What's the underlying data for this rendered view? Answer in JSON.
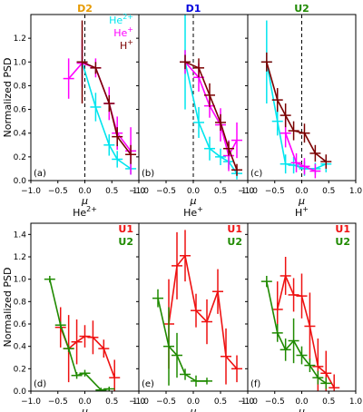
{
  "colors": {
    "he2": "#00e5ee",
    "he1": "#ff00ff",
    "h1": "#7a0000",
    "u1": "#ee1111",
    "u2": "#1f8a00",
    "d2_title": "#e69a00",
    "d1_title": "#0000dd",
    "u2_title": "#1f8a00"
  },
  "chart_data": [
    {
      "type": "line",
      "panel": "(a)",
      "title": "D2",
      "title_color": "#e69a00",
      "xlim": [
        -1.0,
        1.0
      ],
      "ylim": [
        0,
        1.4
      ],
      "dashed_x": 0,
      "ylabel": "Normalized PSD",
      "xlabel": "μ",
      "xticks": [
        "−1.0",
        "−0.5",
        "0.0",
        "0.5",
        "1.0"
      ],
      "yticks": [
        "0.0",
        "0.2",
        "0.4",
        "0.6",
        "0.8",
        "1.0",
        "1.2"
      ],
      "show_xtick_labels": false,
      "show_ytick_labels": true,
      "legend": [
        {
          "text": "He",
          "sup": "2+",
          "color": "#00e5ee"
        },
        {
          "text": "He",
          "sup": "+",
          "color": "#ff00ff"
        },
        {
          "text": "H",
          "sup": "+",
          "color": "#7a0000"
        }
      ],
      "series": [
        {
          "name": "He2+",
          "color": "#00e5ee",
          "x": [
            -0.05,
            0.2,
            0.45,
            0.6,
            0.85
          ],
          "y": [
            1.0,
            0.62,
            0.3,
            0.18,
            0.1
          ],
          "err": [
            0.1,
            0.12,
            0.09,
            0.07,
            0.05
          ]
        },
        {
          "name": "He+",
          "color": "#ff00ff",
          "x": [
            -0.3,
            -0.05,
            0.2,
            0.45,
            0.6,
            0.85
          ],
          "y": [
            0.86,
            0.99,
            0.95,
            0.65,
            0.4,
            0.25
          ],
          "err": [
            0.17,
            0.2,
            0.08,
            0.14,
            0.14,
            0.2
          ]
        },
        {
          "name": "H+",
          "color": "#7a0000",
          "x": [
            -0.05,
            0.2,
            0.45,
            0.6,
            0.85
          ],
          "y": [
            1.0,
            0.95,
            0.65,
            0.37,
            0.22
          ],
          "err": [
            0.35,
            0.05,
            0.07,
            0.08,
            0.08
          ]
        }
      ]
    },
    {
      "type": "line",
      "panel": "(b)",
      "title": "D1",
      "title_color": "#0000dd",
      "xlim": [
        -1.0,
        1.0
      ],
      "ylim": [
        0,
        1.4
      ],
      "dashed_x": 0,
      "xlabel": "μ",
      "xticks": [
        "−1.0",
        "−0.5",
        "0.0",
        "0.5",
        "1.0"
      ],
      "show_xtick_labels": false,
      "show_ytick_labels": false,
      "series": [
        {
          "name": "He2+",
          "color": "#00e5ee",
          "x": [
            -0.15,
            0.1,
            0.3,
            0.5,
            0.65,
            0.8
          ],
          "y": [
            1.0,
            0.49,
            0.27,
            0.2,
            0.16,
            0.06
          ],
          "err": [
            0.4,
            0.13,
            0.1,
            0.07,
            0.06,
            0.05
          ]
        },
        {
          "name": "He+",
          "color": "#ff00ff",
          "x": [
            -0.15,
            0.1,
            0.3,
            0.5,
            0.65,
            0.8
          ],
          "y": [
            1.0,
            0.87,
            0.63,
            0.47,
            0.21,
            0.34
          ],
          "err": [
            0.1,
            0.12,
            0.1,
            0.14,
            0.13,
            0.15
          ]
        },
        {
          "name": "H+",
          "color": "#7a0000",
          "x": [
            -0.15,
            0.1,
            0.3,
            0.5,
            0.65,
            0.8
          ],
          "y": [
            1.0,
            0.95,
            0.72,
            0.49,
            0.27,
            0.09
          ],
          "err": [
            0.06,
            0.08,
            0.1,
            0.07,
            0.06,
            0.05
          ]
        }
      ]
    },
    {
      "type": "line",
      "panel": "(c)",
      "title": "U2",
      "title_color": "#1f8a00",
      "xlim": [
        -1.0,
        1.0
      ],
      "ylim": [
        0,
        1.4
      ],
      "dashed_x": 0,
      "xlabel": "μ",
      "xticks": [
        "−1.0",
        "−0.5",
        "0.0",
        "0.5",
        "1.0"
      ],
      "show_xtick_labels": false,
      "show_ytick_labels": false,
      "series": [
        {
          "name": "He2+",
          "color": "#00e5ee",
          "x": [
            -0.65,
            -0.45,
            -0.3,
            -0.15,
            0.05,
            0.25,
            0.45
          ],
          "y": [
            1.0,
            0.5,
            0.14,
            0.13,
            0.1,
            0.1,
            0.14
          ],
          "err": [
            0.35,
            0.12,
            0.08,
            0.07,
            0.06,
            0.05,
            0.07
          ]
        },
        {
          "name": "He+",
          "color": "#ff00ff",
          "x": [
            -0.3,
            -0.1,
            0.05,
            0.25
          ],
          "y": [
            0.4,
            0.15,
            0.12,
            0.08
          ],
          "err": [
            0.12,
            0.08,
            0.07,
            0.06
          ]
        },
        {
          "name": "H+",
          "color": "#7a0000",
          "x": [
            -0.65,
            -0.45,
            -0.3,
            -0.15,
            0.05,
            0.25,
            0.45
          ],
          "y": [
            1.0,
            0.68,
            0.55,
            0.42,
            0.4,
            0.23,
            0.16
          ],
          "err": [
            0.08,
            0.1,
            0.1,
            0.08,
            0.08,
            0.07,
            0.06
          ]
        }
      ]
    },
    {
      "type": "line",
      "panel": "(d)",
      "title": "He2+",
      "title_base": "He",
      "title_sup": "2+",
      "xlim": [
        -1.0,
        1.0
      ],
      "ylim": [
        0,
        1.5
      ],
      "ylabel": "Normalized PSD",
      "xlabel": "μ",
      "xticks": [
        "−1.0",
        "−0.5",
        "0.0",
        "0.5",
        "1.0"
      ],
      "yticks": [
        "0.0",
        "0.2",
        "0.4",
        "0.6",
        "0.8",
        "1.0",
        "1.2",
        "1.4"
      ],
      "show_xtick_labels": true,
      "show_ytick_labels": true,
      "legend": [
        {
          "text": "U1",
          "color": "#ee1111"
        },
        {
          "text": "U2",
          "color": "#1f8a00"
        }
      ],
      "series": [
        {
          "name": "U1",
          "color": "#ee1111",
          "x": [
            -0.45,
            -0.3,
            -0.15,
            0.0,
            0.15,
            0.35,
            0.55
          ],
          "y": [
            0.57,
            0.38,
            0.44,
            0.49,
            0.48,
            0.38,
            0.12
          ],
          "err": [
            0.18,
            0.3,
            0.2,
            0.1,
            0.15,
            0.08,
            0.16
          ]
        },
        {
          "name": "U2",
          "color": "#1f8a00",
          "x": [
            -0.65,
            -0.45,
            -0.3,
            -0.15,
            0.0,
            0.3,
            0.45
          ],
          "y": [
            1.0,
            0.59,
            0.38,
            0.14,
            0.16,
            0.01,
            0.02
          ],
          "err": [
            0.03,
            0.03,
            0.03,
            0.03,
            0.03,
            0.02,
            0.02
          ]
        }
      ]
    },
    {
      "type": "line",
      "panel": "(e)",
      "title": "He+",
      "title_base": "He",
      "title_sup": "+",
      "xlim": [
        -1.0,
        1.0
      ],
      "ylim": [
        0,
        1.5
      ],
      "xlabel": "μ",
      "xticks": [
        "−1.0",
        "−0.5",
        "0.0",
        "0.5",
        "1.0"
      ],
      "show_xtick_labels": true,
      "show_ytick_labels": false,
      "legend": [
        {
          "text": "U1",
          "color": "#ee1111"
        },
        {
          "text": "U2",
          "color": "#1f8a00"
        }
      ],
      "series": [
        {
          "name": "U1",
          "color": "#ee1111",
          "x": [
            -0.45,
            -0.3,
            -0.15,
            0.05,
            0.25,
            0.45,
            0.6,
            0.8
          ],
          "y": [
            0.6,
            1.12,
            1.21,
            0.72,
            0.62,
            0.89,
            0.31,
            0.2
          ],
          "err": [
            0.4,
            0.3,
            0.23,
            0.15,
            0.2,
            0.2,
            0.25,
            0.12
          ]
        },
        {
          "name": "U2",
          "color": "#1f8a00",
          "x": [
            -0.65,
            -0.45,
            -0.3,
            -0.15,
            0.05,
            0.25
          ],
          "y": [
            0.83,
            0.4,
            0.32,
            0.15,
            0.09,
            0.09
          ],
          "err": [
            0.08,
            0.35,
            0.2,
            0.05,
            0.05,
            0.03
          ]
        }
      ]
    },
    {
      "type": "line",
      "panel": "(f)",
      "title": "H+",
      "title_base": "H",
      "title_sup": "+",
      "xlim": [
        -1.0,
        1.0
      ],
      "ylim": [
        0,
        1.5
      ],
      "xlabel": "μ",
      "xticks": [
        "−1.0",
        "−0.5",
        "0.0",
        "0.5",
        "1.0"
      ],
      "show_xtick_labels": true,
      "show_ytick_labels": false,
      "legend": [
        {
          "text": "U1",
          "color": "#ee1111"
        },
        {
          "text": "U2",
          "color": "#1f8a00"
        }
      ],
      "series": [
        {
          "name": "U1",
          "color": "#ee1111",
          "x": [
            -0.45,
            -0.3,
            -0.15,
            0.0,
            0.15,
            0.3,
            0.45,
            0.6
          ],
          "y": [
            0.73,
            1.03,
            0.86,
            0.85,
            0.58,
            0.22,
            0.16,
            0.03
          ],
          "err": [
            0.25,
            0.17,
            0.15,
            0.2,
            0.3,
            0.25,
            0.2,
            0.12
          ]
        },
        {
          "name": "U2",
          "color": "#1f8a00",
          "x": [
            -0.65,
            -0.45,
            -0.3,
            -0.15,
            0.0,
            0.15,
            0.3,
            0.45
          ],
          "y": [
            0.98,
            0.52,
            0.37,
            0.45,
            0.32,
            0.23,
            0.12,
            0.07
          ],
          "err": [
            0.05,
            0.08,
            0.1,
            0.2,
            0.08,
            0.06,
            0.06,
            0.05
          ]
        }
      ]
    }
  ]
}
